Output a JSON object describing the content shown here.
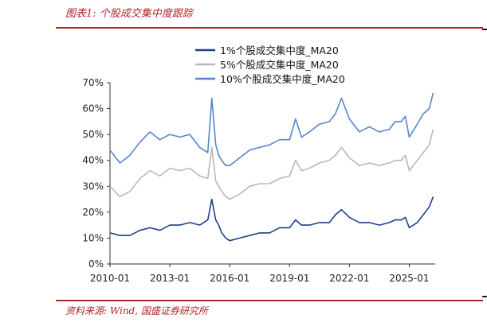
{
  "figure": {
    "title": "图表1:  个股成交集中度跟踪",
    "source": "资料来源:  Wind, 国盛证券研究所"
  },
  "chart_data": {
    "type": "line",
    "title": "",
    "xlabel": "",
    "ylabel": "",
    "x_ticks": [
      "2010-01",
      "2013-01",
      "2016-01",
      "2019-01",
      "2022-01",
      "2025-01"
    ],
    "y_ticks": [
      "0%",
      "10%",
      "20%",
      "30%",
      "40%",
      "50%",
      "60%",
      "70%"
    ],
    "ylim": [
      0,
      70
    ],
    "xlim": [
      2010.0,
      2026.3
    ],
    "grid": false,
    "legend_position": "top-center",
    "x": [
      2010.0,
      2010.5,
      2011.0,
      2011.5,
      2012.0,
      2012.5,
      2013.0,
      2013.5,
      2014.0,
      2014.5,
      2014.9,
      2015.1,
      2015.3,
      2015.45,
      2015.6,
      2015.8,
      2016.0,
      2016.5,
      2017.0,
      2017.5,
      2018.0,
      2018.5,
      2019.0,
      2019.3,
      2019.6,
      2020.0,
      2020.5,
      2021.0,
      2021.3,
      2021.6,
      2022.0,
      2022.5,
      2023.0,
      2023.5,
      2024.0,
      2024.3,
      2024.6,
      2024.8,
      2025.0,
      2025.4,
      2025.7,
      2026.0,
      2026.2
    ],
    "series": [
      {
        "name": "1%个股成交集中度_MA20",
        "color": "#1f3f8f",
        "values": [
          12,
          11,
          11,
          13,
          14,
          13,
          15,
          15,
          16,
          15,
          17,
          25,
          17,
          15,
          12,
          10,
          9,
          10,
          11,
          12,
          12,
          14,
          14,
          17,
          15,
          15,
          16,
          16,
          19,
          21,
          18,
          16,
          16,
          15,
          16,
          17,
          17,
          18,
          14,
          16,
          19,
          22,
          26
        ]
      },
      {
        "name": "5%个股成交集中度_MA20",
        "color": "#b8b8b8",
        "values": [
          30,
          26,
          28,
          33,
          36,
          34,
          37,
          36,
          37,
          34,
          33,
          45,
          32,
          30,
          28,
          26,
          25,
          27,
          30,
          31,
          31,
          33,
          34,
          40,
          36,
          37,
          39,
          40,
          42,
          45,
          41,
          38,
          39,
          38,
          39,
          40,
          40,
          42,
          36,
          40,
          43,
          46,
          52
        ]
      },
      {
        "name": "10%个股成交集中度_MA20",
        "color": "#5586cc",
        "values": [
          44,
          39,
          42,
          47,
          51,
          48,
          50,
          49,
          50,
          45,
          43,
          64,
          46,
          42,
          40,
          38,
          38,
          41,
          44,
          45,
          46,
          48,
          48,
          56,
          49,
          51,
          54,
          55,
          58,
          64,
          56,
          51,
          53,
          51,
          52,
          55,
          55,
          57,
          49,
          54,
          58,
          60,
          66
        ]
      }
    ]
  }
}
